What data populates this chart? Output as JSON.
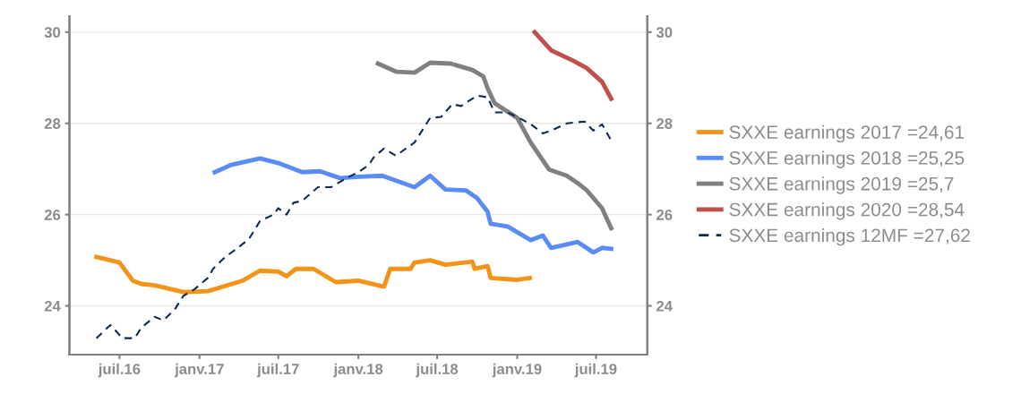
{
  "chart_data": {
    "type": "line",
    "xlim": [
      "2016-03-08",
      "2019-10-27"
    ],
    "xticks": [
      {
        "value": "2016-07-01",
        "label": "juil.16"
      },
      {
        "value": "2017-01-01",
        "label": "janv.17"
      },
      {
        "value": "2017-07-01",
        "label": "juil.17"
      },
      {
        "value": "2018-01-01",
        "label": "janv.18"
      },
      {
        "value": "2018-07-01",
        "label": "juil.18"
      },
      {
        "value": "2019-01-01",
        "label": "janv.19"
      },
      {
        "value": "2019-07-01",
        "label": "juil.19"
      }
    ],
    "ylim": [
      22.93,
      30.35
    ],
    "yticks": [
      24,
      26,
      28,
      30
    ],
    "y2lim": [
      22.93,
      30.35
    ],
    "y2ticks": [
      24,
      26,
      28,
      30
    ],
    "grid": "y",
    "legend": "right",
    "series": [
      {
        "name": "SXXE earnings 2017 =24,61",
        "color": "#f39419",
        "line_style": "solid",
        "x": [
          "2016-05-09",
          "2016-07-01",
          "2016-08-01",
          "2016-08-20",
          "2016-09-20",
          "2016-11-25",
          "2017-01-20",
          "2017-04-10",
          "2017-05-20",
          "2017-07-01",
          "2017-07-20",
          "2017-08-10",
          "2017-09-20",
          "2017-11-10",
          "2018-01-01",
          "2018-03-01",
          "2018-03-15",
          "2018-05-01",
          "2018-05-10",
          "2018-06-15",
          "2018-07-20",
          "2018-09-20",
          "2018-09-25",
          "2018-10-25",
          "2018-11-01",
          "2019-01-01",
          "2019-01-30"
        ],
        "values": [
          25.07,
          24.95,
          24.55,
          24.48,
          24.45,
          24.3,
          24.32,
          24.55,
          24.77,
          24.75,
          24.65,
          24.81,
          24.81,
          24.52,
          24.55,
          24.42,
          24.81,
          24.81,
          24.95,
          25.0,
          24.9,
          24.97,
          24.81,
          24.87,
          24.61,
          24.57,
          24.61
        ]
      },
      {
        "name": "SXXE earnings 2018 =25,25",
        "color": "#5a8cf7",
        "line_style": "solid",
        "x": [
          "2017-02-05",
          "2017-03-15",
          "2017-05-20",
          "2017-07-01",
          "2017-08-25",
          "2017-10-05",
          "2017-11-20",
          "2018-01-01",
          "2018-02-25",
          "2018-05-10",
          "2018-06-15",
          "2018-07-20",
          "2018-09-05",
          "2018-10-01",
          "2018-10-25",
          "2018-11-01",
          "2018-12-10",
          "2019-02-01",
          "2019-03-01",
          "2019-03-20",
          "2019-05-20",
          "2019-06-25",
          "2019-07-15",
          "2019-08-05"
        ],
        "values": [
          26.93,
          27.09,
          27.23,
          27.13,
          26.93,
          26.95,
          26.8,
          26.83,
          26.85,
          26.6,
          26.85,
          26.55,
          26.53,
          26.36,
          26.06,
          25.8,
          25.74,
          25.44,
          25.54,
          25.27,
          25.4,
          25.17,
          25.27,
          25.25
        ]
      },
      {
        "name": "SXXE earnings 2019 =25,7",
        "color": "#808080",
        "line_style": "solid",
        "x": [
          "2018-02-15",
          "2018-03-30",
          "2018-05-10",
          "2018-06-15",
          "2018-08-01",
          "2018-09-20",
          "2018-10-15",
          "2018-10-25",
          "2018-11-10",
          "2019-01-01",
          "2019-02-01",
          "2019-03-15",
          "2019-04-25",
          "2019-05-20",
          "2019-06-10",
          "2019-07-15",
          "2019-08-05"
        ],
        "values": [
          29.31,
          29.13,
          29.11,
          29.33,
          29.31,
          29.17,
          29.03,
          28.77,
          28.44,
          28.12,
          27.58,
          26.99,
          26.85,
          26.69,
          26.53,
          26.14,
          25.7
        ]
      },
      {
        "name": "SXXE earnings 2020 =28,54",
        "color": "#c0504d",
        "line_style": "solid",
        "x": [
          "2019-02-10",
          "2019-03-20",
          "2019-05-10",
          "2019-06-10",
          "2019-07-15",
          "2019-08-05"
        ],
        "values": [
          30.0,
          29.6,
          29.37,
          29.21,
          28.91,
          28.54
        ]
      },
      {
        "name": "SXXE earnings 12MF =27,62",
        "color": "#0d2c54",
        "line_style": "dashed",
        "x": [
          "2016-05-09",
          "2016-06-10",
          "2016-07-08",
          "2016-08-05",
          "2016-08-20",
          "2016-09-20",
          "2016-10-10",
          "2016-11-05",
          "2016-11-25",
          "2016-12-20",
          "2017-01-20",
          "2017-02-01",
          "2017-03-01",
          "2017-03-30",
          "2017-04-25",
          "2017-05-20",
          "2017-06-20",
          "2017-07-01",
          "2017-07-20",
          "2017-08-05",
          "2017-08-25",
          "2017-09-30",
          "2017-10-30",
          "2017-12-05",
          "2018-01-01",
          "2018-01-25",
          "2018-02-05",
          "2018-03-01",
          "2018-03-28",
          "2018-05-10",
          "2018-06-15",
          "2018-07-10",
          "2018-08-05",
          "2018-08-25",
          "2018-10-01",
          "2018-10-25",
          "2018-11-10",
          "2018-12-10",
          "2019-01-05",
          "2019-02-01",
          "2019-03-01",
          "2019-03-20",
          "2019-04-25",
          "2019-06-05",
          "2019-06-25",
          "2019-07-15",
          "2019-08-05"
        ],
        "values": [
          23.29,
          23.58,
          23.29,
          23.29,
          23.52,
          23.76,
          23.68,
          23.92,
          24.22,
          24.36,
          24.61,
          24.81,
          25.07,
          25.27,
          25.47,
          25.86,
          26.0,
          26.14,
          26.0,
          26.26,
          26.3,
          26.6,
          26.6,
          26.8,
          26.93,
          27.09,
          27.25,
          27.45,
          27.29,
          27.58,
          28.12,
          28.14,
          28.42,
          28.38,
          28.61,
          28.57,
          28.24,
          28.24,
          28.12,
          27.98,
          27.78,
          27.84,
          28.0,
          28.04,
          27.84,
          27.98,
          27.62
        ]
      }
    ]
  }
}
